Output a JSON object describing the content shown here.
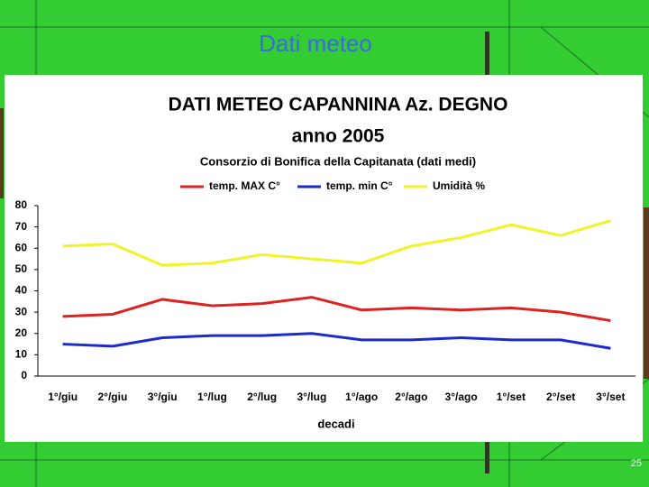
{
  "slide": {
    "title": "Dati meteo",
    "page_number": "25"
  },
  "chart_data": {
    "type": "line",
    "title": [
      "DATI METEO CAPANNINA Az. DEGNO",
      "anno 2005"
    ],
    "subtitle": "Consorzio di Bonifica della Capitanata (dati medi)",
    "x_label": "decadi",
    "categories": [
      "1°/giu",
      "2°/giu",
      "3°/giu",
      "1°/lug",
      "2°/lug",
      "3°/lug",
      "1°/ago",
      "2°/ago",
      "3°/ago",
      "1°/set",
      "2°/set",
      "3°/set"
    ],
    "series": [
      {
        "name": "temp. MAX C°",
        "color": "#dd2222",
        "values": [
          28,
          29,
          36,
          33,
          34,
          37,
          31,
          32,
          31,
          32,
          30,
          26
        ]
      },
      {
        "name": "temp. min C°",
        "color": "#1a2acc",
        "values": [
          15,
          14,
          18,
          19,
          19,
          20,
          17,
          17,
          18,
          17,
          17,
          13
        ]
      },
      {
        "name": "Umidità %",
        "color": "#f2f22a",
        "values": [
          61,
          62,
          52,
          53,
          57,
          55,
          53,
          61,
          65,
          71,
          66,
          73
        ]
      }
    ],
    "ylim": [
      0,
      80
    ],
    "yticks": [
      0,
      10,
      20,
      30,
      40,
      50,
      60,
      70,
      80
    ],
    "legend": "top",
    "grid": false
  }
}
